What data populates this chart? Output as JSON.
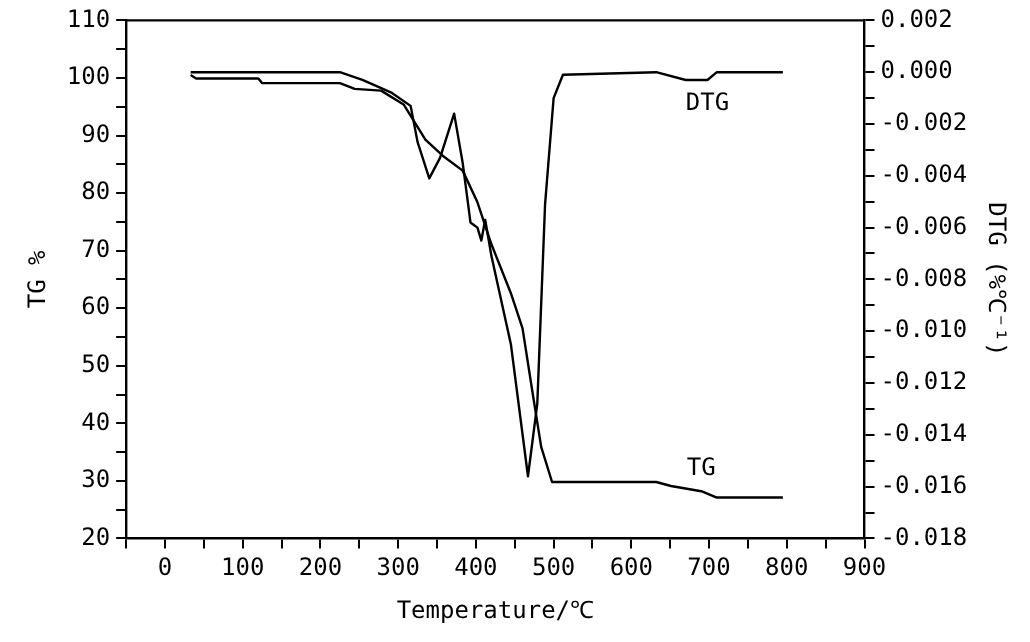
{
  "chart_data": {
    "type": "line",
    "xlabel": "Temperature/℃",
    "ylabel": "TG %",
    "y2label": "DTG (%℃⁻¹)",
    "xlim": [
      -50,
      900
    ],
    "xticks": [
      {
        "value": -50,
        "label": null
      },
      0,
      {
        "value": 50,
        "label": null
      },
      100,
      {
        "value": 150,
        "label": null
      },
      200,
      {
        "value": 250,
        "label": null
      },
      300,
      {
        "value": 350,
        "label": null
      },
      400,
      {
        "value": 450,
        "label": null
      },
      500,
      {
        "value": 550,
        "label": null
      },
      600,
      {
        "value": 650,
        "label": null
      },
      700,
      {
        "value": 750,
        "label": null
      },
      800,
      {
        "value": 850,
        "label": null
      },
      900
    ],
    "ylim": [
      20,
      110
    ],
    "yticks": [
      20,
      {
        "value": 25,
        "label": null
      },
      30,
      {
        "value": 35,
        "label": null
      },
      40,
      {
        "value": 45,
        "label": null
      },
      50,
      {
        "value": 55,
        "label": null
      },
      60,
      {
        "value": 65,
        "label": null
      },
      70,
      {
        "value": 75,
        "label": null
      },
      80,
      {
        "value": 85,
        "label": null
      },
      90,
      {
        "value": 95,
        "label": null
      },
      100,
      {
        "value": 105,
        "label": null
      },
      110
    ],
    "y2lim": [
      -0.018,
      0.002
    ],
    "y2ticks": [
      {
        "value": 0.002,
        "label": "0.002"
      },
      {
        "value": 0.001,
        "label": null
      },
      {
        "value": 0,
        "label": "0.000"
      },
      {
        "value": -0.001,
        "label": null
      },
      {
        "value": -0.002,
        "label": "-0.002"
      },
      {
        "value": -0.003,
        "label": null
      },
      {
        "value": -0.004,
        "label": "-0.004"
      },
      {
        "value": -0.005,
        "label": null
      },
      {
        "value": -0.006,
        "label": "-0.006"
      },
      {
        "value": -0.007,
        "label": null
      },
      {
        "value": -0.008,
        "label": "-0.008"
      },
      {
        "value": -0.009,
        "label": null
      },
      {
        "value": -0.01,
        "label": "-0.010"
      },
      {
        "value": -0.011,
        "label": null
      },
      {
        "value": -0.012,
        "label": "-0.012"
      },
      {
        "value": -0.013,
        "label": null
      },
      {
        "value": -0.014,
        "label": "-0.014"
      },
      {
        "value": -0.015,
        "label": null
      },
      {
        "value": -0.016,
        "label": "-0.016"
      },
      {
        "value": -0.017,
        "label": null
      },
      {
        "value": -0.018,
        "label": "-0.018"
      }
    ],
    "grid": false,
    "legend": false,
    "marker": "none",
    "line_style": "solid",
    "series": [
      {
        "name": "TG",
        "color": "#000000",
        "x": [
          33,
          40,
          120,
          125,
          225,
          244,
          278,
          307,
          335,
          359,
          383,
          402,
          420,
          445,
          460,
          474,
          484,
          498,
          632,
          651,
          690,
          710,
          795
        ],
        "values": [
          100.5,
          99.9,
          99.9,
          99.1,
          99.1,
          98.1,
          97.8,
          95.4,
          89.3,
          86.3,
          83.9,
          78.4,
          71.1,
          62.6,
          56.5,
          44.4,
          35.9,
          29.8,
          29.8,
          29.1,
          28.2,
          27.1,
          27.1
        ]
      },
      {
        "name": "DTG",
        "color": "#000000",
        "axis": "y2",
        "x": [
          33,
          225,
          254,
          292,
          316,
          325,
          340,
          354,
          372,
          383,
          390,
          393,
          402,
          407,
          412,
          420,
          445,
          467,
          479,
          489,
          500,
          512,
          632,
          670,
          698,
          710,
          795
        ],
        "values": [
          0,
          0,
          -0.0003,
          -0.0008,
          -0.0013,
          -0.0027,
          -0.0041,
          -0.0033,
          -0.0016,
          -0.0035,
          -0.0051,
          -0.0058,
          -0.006,
          -0.0065,
          -0.0057,
          -0.0071,
          -0.0105,
          -0.0156,
          -0.0128,
          -0.0051,
          -0.001,
          -0.0001,
          0,
          -0.0003,
          -0.0003,
          0,
          0
        ]
      }
    ]
  }
}
